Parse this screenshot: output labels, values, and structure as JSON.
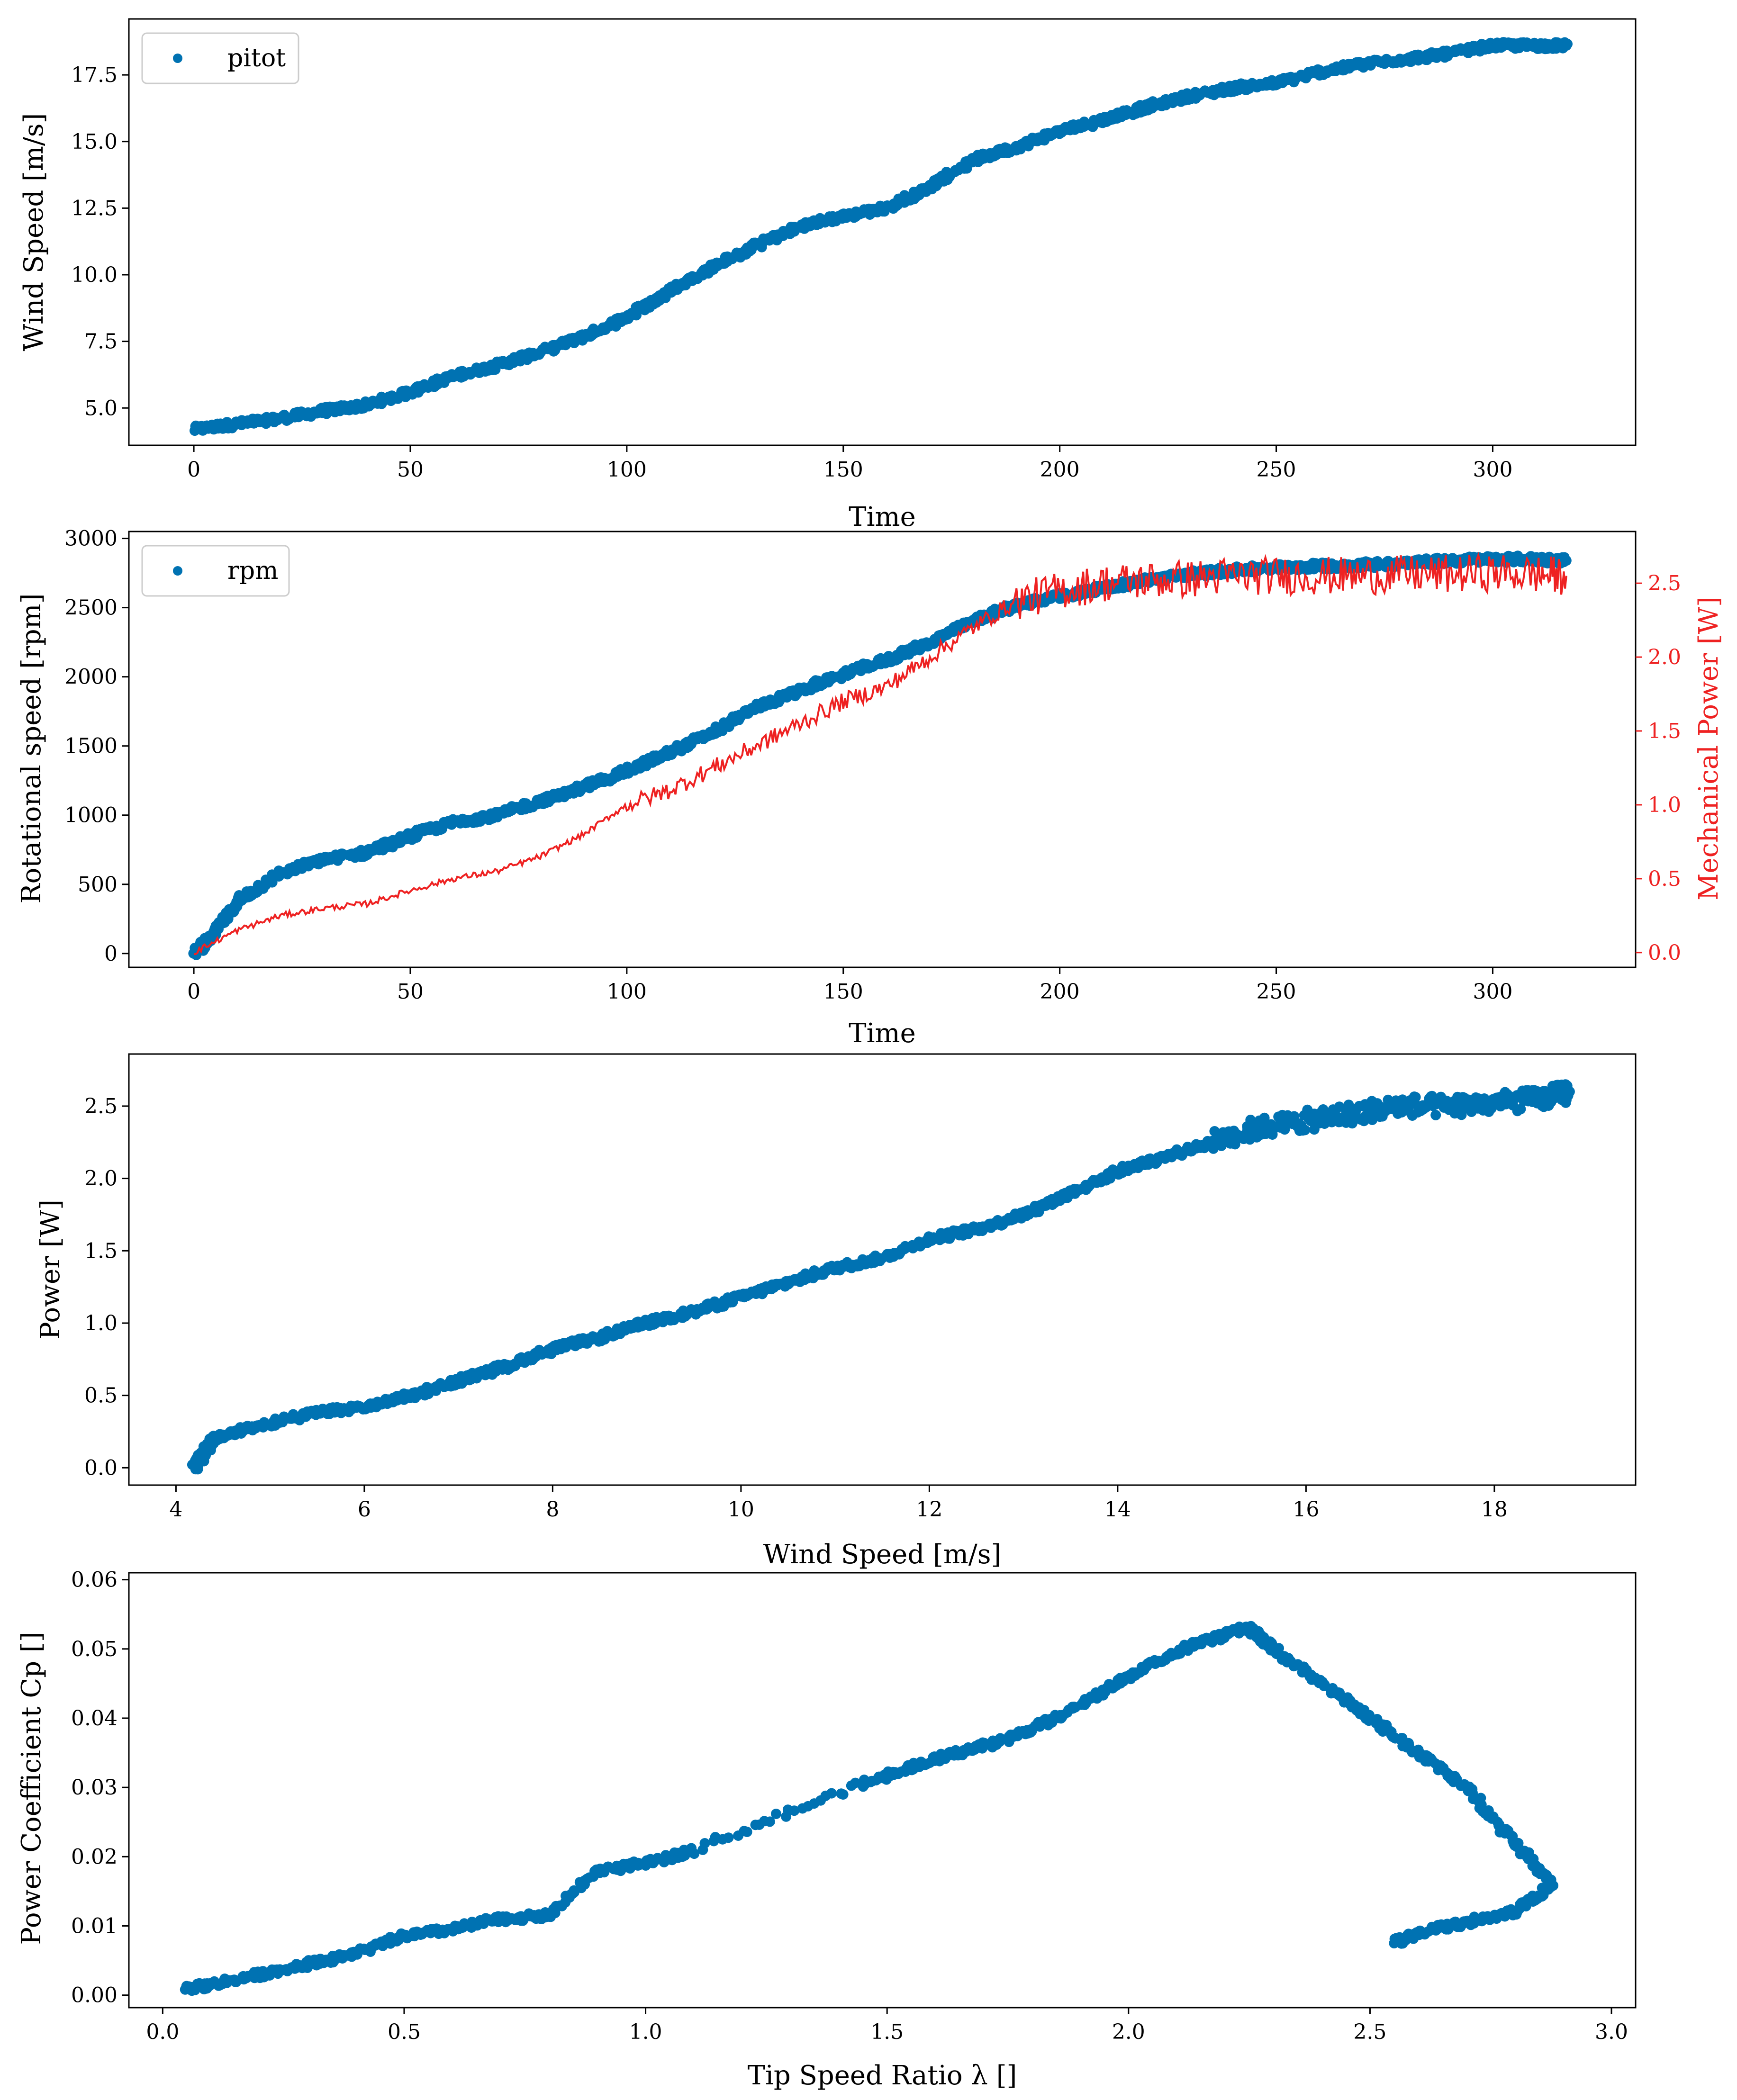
{
  "figure": {
    "background": "#ffffff",
    "colors": {
      "blue": "#0072B2",
      "red": "#EE2222",
      "axis": "#000000"
    }
  },
  "chart_data": [
    {
      "id": "wind",
      "type": "scatter",
      "xlabel": "Time",
      "ylabel": "Wind Speed [m/s]",
      "xlim": [
        -15,
        333
      ],
      "ylim": [
        3.6,
        19.6
      ],
      "xticks": [
        0,
        50,
        100,
        150,
        200,
        250,
        300
      ],
      "yticks": [
        5.0,
        7.5,
        10.0,
        12.5,
        15.0,
        17.5
      ],
      "ytick_labels": [
        "5.0",
        "7.5",
        "10.0",
        "12.5",
        "15.0",
        "17.5"
      ],
      "legend": {
        "label": "pitot",
        "location": "top-left"
      },
      "series": [
        {
          "name": "pitot",
          "color": "#0072B2",
          "points": [
            [
              0,
              4.2
            ],
            [
              10,
              4.4
            ],
            [
              20,
              4.6
            ],
            [
              30,
              4.9
            ],
            [
              40,
              5.1
            ],
            [
              50,
              5.6
            ],
            [
              60,
              6.2
            ],
            [
              70,
              6.6
            ],
            [
              80,
              7.1
            ],
            [
              90,
              7.7
            ],
            [
              100,
              8.4
            ],
            [
              110,
              9.4
            ],
            [
              120,
              10.3
            ],
            [
              130,
              11.1
            ],
            [
              140,
              11.8
            ],
            [
              150,
              12.2
            ],
            [
              160,
              12.5
            ],
            [
              170,
              13.3
            ],
            [
              180,
              14.3
            ],
            [
              190,
              14.8
            ],
            [
              200,
              15.4
            ],
            [
              210,
              15.8
            ],
            [
              220,
              16.3
            ],
            [
              230,
              16.7
            ],
            [
              240,
              17.0
            ],
            [
              250,
              17.2
            ],
            [
              260,
              17.6
            ],
            [
              270,
              17.9
            ],
            [
              280,
              18.1
            ],
            [
              290,
              18.3
            ],
            [
              300,
              18.6
            ],
            [
              310,
              18.6
            ],
            [
              317,
              18.6
            ]
          ]
        }
      ]
    },
    {
      "id": "rpm",
      "type": "line",
      "xlabel": "Time",
      "ylabel": "Rotational speed [rpm]",
      "y2label": "Mechanical Power [W]",
      "xlim": [
        -15,
        333
      ],
      "ylim": [
        -100,
        3050
      ],
      "y2lim": [
        -0.1,
        2.85
      ],
      "xticks": [
        0,
        50,
        100,
        150,
        200,
        250,
        300
      ],
      "yticks": [
        0,
        500,
        1000,
        1500,
        2000,
        2500,
        3000
      ],
      "y2ticks": [
        0.0,
        0.5,
        1.0,
        1.5,
        2.0,
        2.5
      ],
      "y2tick_labels": [
        "0.0",
        "0.5",
        "1.0",
        "1.5",
        "2.0",
        "2.5"
      ],
      "legend": {
        "label": "rpm",
        "location": "top-left"
      },
      "series": [
        {
          "name": "rpm",
          "axis": "left",
          "style": "scatter",
          "color": "#0072B2",
          "points": [
            [
              0,
              0
            ],
            [
              5,
              150
            ],
            [
              10,
              380
            ],
            [
              20,
              580
            ],
            [
              30,
              680
            ],
            [
              40,
              730
            ],
            [
              50,
              850
            ],
            [
              60,
              950
            ],
            [
              70,
              1000
            ],
            [
              80,
              1100
            ],
            [
              90,
              1200
            ],
            [
              100,
              1320
            ],
            [
              110,
              1450
            ],
            [
              120,
              1600
            ],
            [
              130,
              1780
            ],
            [
              140,
              1900
            ],
            [
              150,
              2020
            ],
            [
              160,
              2120
            ],
            [
              170,
              2250
            ],
            [
              180,
              2400
            ],
            [
              190,
              2520
            ],
            [
              200,
              2580
            ],
            [
              210,
              2640
            ],
            [
              220,
              2700
            ],
            [
              230,
              2740
            ],
            [
              240,
              2770
            ],
            [
              250,
              2790
            ],
            [
              260,
              2800
            ],
            [
              270,
              2810
            ],
            [
              280,
              2820
            ],
            [
              290,
              2840
            ],
            [
              300,
              2850
            ],
            [
              310,
              2850
            ],
            [
              317,
              2840
            ]
          ]
        },
        {
          "name": "Mechanical Power",
          "axis": "right",
          "style": "line",
          "color": "#EE2222",
          "points": [
            [
              0,
              0.0
            ],
            [
              10,
              0.15
            ],
            [
              20,
              0.25
            ],
            [
              30,
              0.3
            ],
            [
              40,
              0.33
            ],
            [
              50,
              0.42
            ],
            [
              60,
              0.5
            ],
            [
              70,
              0.55
            ],
            [
              80,
              0.65
            ],
            [
              90,
              0.8
            ],
            [
              100,
              1.0
            ],
            [
              110,
              1.1
            ],
            [
              120,
              1.25
            ],
            [
              130,
              1.4
            ],
            [
              140,
              1.55
            ],
            [
              150,
              1.7
            ],
            [
              160,
              1.8
            ],
            [
              170,
              2.0
            ],
            [
              180,
              2.2
            ],
            [
              190,
              2.38
            ],
            [
              200,
              2.45
            ],
            [
              210,
              2.5
            ],
            [
              220,
              2.52
            ],
            [
              230,
              2.53
            ],
            [
              240,
              2.55
            ],
            [
              250,
              2.55
            ],
            [
              260,
              2.55
            ],
            [
              270,
              2.55
            ],
            [
              280,
              2.56
            ],
            [
              290,
              2.56
            ],
            [
              300,
              2.57
            ],
            [
              310,
              2.56
            ],
            [
              317,
              2.55
            ]
          ]
        }
      ]
    },
    {
      "id": "power",
      "type": "scatter",
      "xlabel": "Wind Speed [m/s]",
      "ylabel": "Power [W]",
      "xlim": [
        3.5,
        19.5
      ],
      "ylim": [
        -0.12,
        2.86
      ],
      "xticks": [
        4,
        6,
        8,
        10,
        12,
        14,
        16,
        18
      ],
      "yticks": [
        0.0,
        0.5,
        1.0,
        1.5,
        2.0,
        2.5
      ],
      "ytick_labels": [
        "0.0",
        "0.5",
        "1.0",
        "1.5",
        "2.0",
        "2.5"
      ],
      "series": [
        {
          "name": "power",
          "color": "#0072B2",
          "points": [
            [
              4.2,
              0.0
            ],
            [
              4.3,
              0.1
            ],
            [
              4.4,
              0.2
            ],
            [
              4.8,
              0.28
            ],
            [
              5.5,
              0.38
            ],
            [
              6.0,
              0.42
            ],
            [
              6.5,
              0.5
            ],
            [
              7.0,
              0.6
            ],
            [
              7.5,
              0.7
            ],
            [
              8.0,
              0.82
            ],
            [
              8.5,
              0.9
            ],
            [
              9.0,
              1.0
            ],
            [
              9.5,
              1.08
            ],
            [
              10.0,
              1.18
            ],
            [
              10.5,
              1.28
            ],
            [
              11.0,
              1.38
            ],
            [
              11.5,
              1.45
            ],
            [
              12.0,
              1.58
            ],
            [
              12.5,
              1.65
            ],
            [
              13.0,
              1.75
            ],
            [
              13.5,
              1.9
            ],
            [
              14.0,
              2.05
            ],
            [
              14.5,
              2.15
            ],
            [
              15.0,
              2.25
            ],
            [
              15.5,
              2.35
            ],
            [
              16.0,
              2.4
            ],
            [
              16.5,
              2.45
            ],
            [
              17.0,
              2.5
            ],
            [
              17.5,
              2.5
            ],
            [
              18.0,
              2.52
            ],
            [
              18.5,
              2.55
            ],
            [
              18.8,
              2.6
            ]
          ]
        }
      ]
    },
    {
      "id": "cp",
      "type": "scatter",
      "xlabel": "Tip Speed Ratio λ []",
      "ylabel": "Power Coefficient Cp []",
      "xlim": [
        -0.07,
        3.05
      ],
      "ylim": [
        -0.0018,
        0.061
      ],
      "xticks": [
        0.0,
        0.5,
        1.0,
        1.5,
        2.0,
        2.5,
        3.0
      ],
      "xtick_labels": [
        "0.0",
        "0.5",
        "1.0",
        "1.5",
        "2.0",
        "2.5",
        "3.0"
      ],
      "yticks": [
        0.0,
        0.01,
        0.02,
        0.03,
        0.04,
        0.05,
        0.06
      ],
      "ytick_labels": [
        "0.00",
        "0.01",
        "0.02",
        "0.03",
        "0.04",
        "0.05",
        "0.06"
      ],
      "series": [
        {
          "name": "cp",
          "color": "#0072B2",
          "points": [
            [
              0.05,
              0.001
            ],
            [
              0.1,
              0.0015
            ],
            [
              0.2,
              0.003
            ],
            [
              0.3,
              0.0045
            ],
            [
              0.4,
              0.006
            ],
            [
              0.5,
              0.0085
            ],
            [
              0.6,
              0.0095
            ],
            [
              0.7,
              0.011
            ],
            [
              0.8,
              0.0115
            ],
            [
              0.9,
              0.018
            ],
            [
              1.0,
              0.019
            ],
            [
              1.1,
              0.021
            ],
            [
              1.45,
              0.0305
            ],
            [
              1.55,
              0.033
            ],
            [
              1.65,
              0.035
            ],
            [
              1.75,
              0.037
            ],
            [
              1.85,
              0.04
            ],
            [
              1.95,
              0.044
            ],
            [
              2.05,
              0.048
            ],
            [
              2.15,
              0.051
            ],
            [
              2.25,
              0.053
            ],
            [
              2.3,
              0.05
            ],
            [
              2.4,
              0.045
            ],
            [
              2.5,
              0.04
            ],
            [
              2.6,
              0.035
            ],
            [
              2.7,
              0.03
            ],
            [
              2.8,
              0.022
            ],
            [
              2.88,
              0.016
            ],
            [
              2.8,
              0.012
            ],
            [
              2.7,
              0.0105
            ],
            [
              2.6,
              0.009
            ],
            [
              2.55,
              0.0075
            ]
          ]
        }
      ]
    }
  ]
}
